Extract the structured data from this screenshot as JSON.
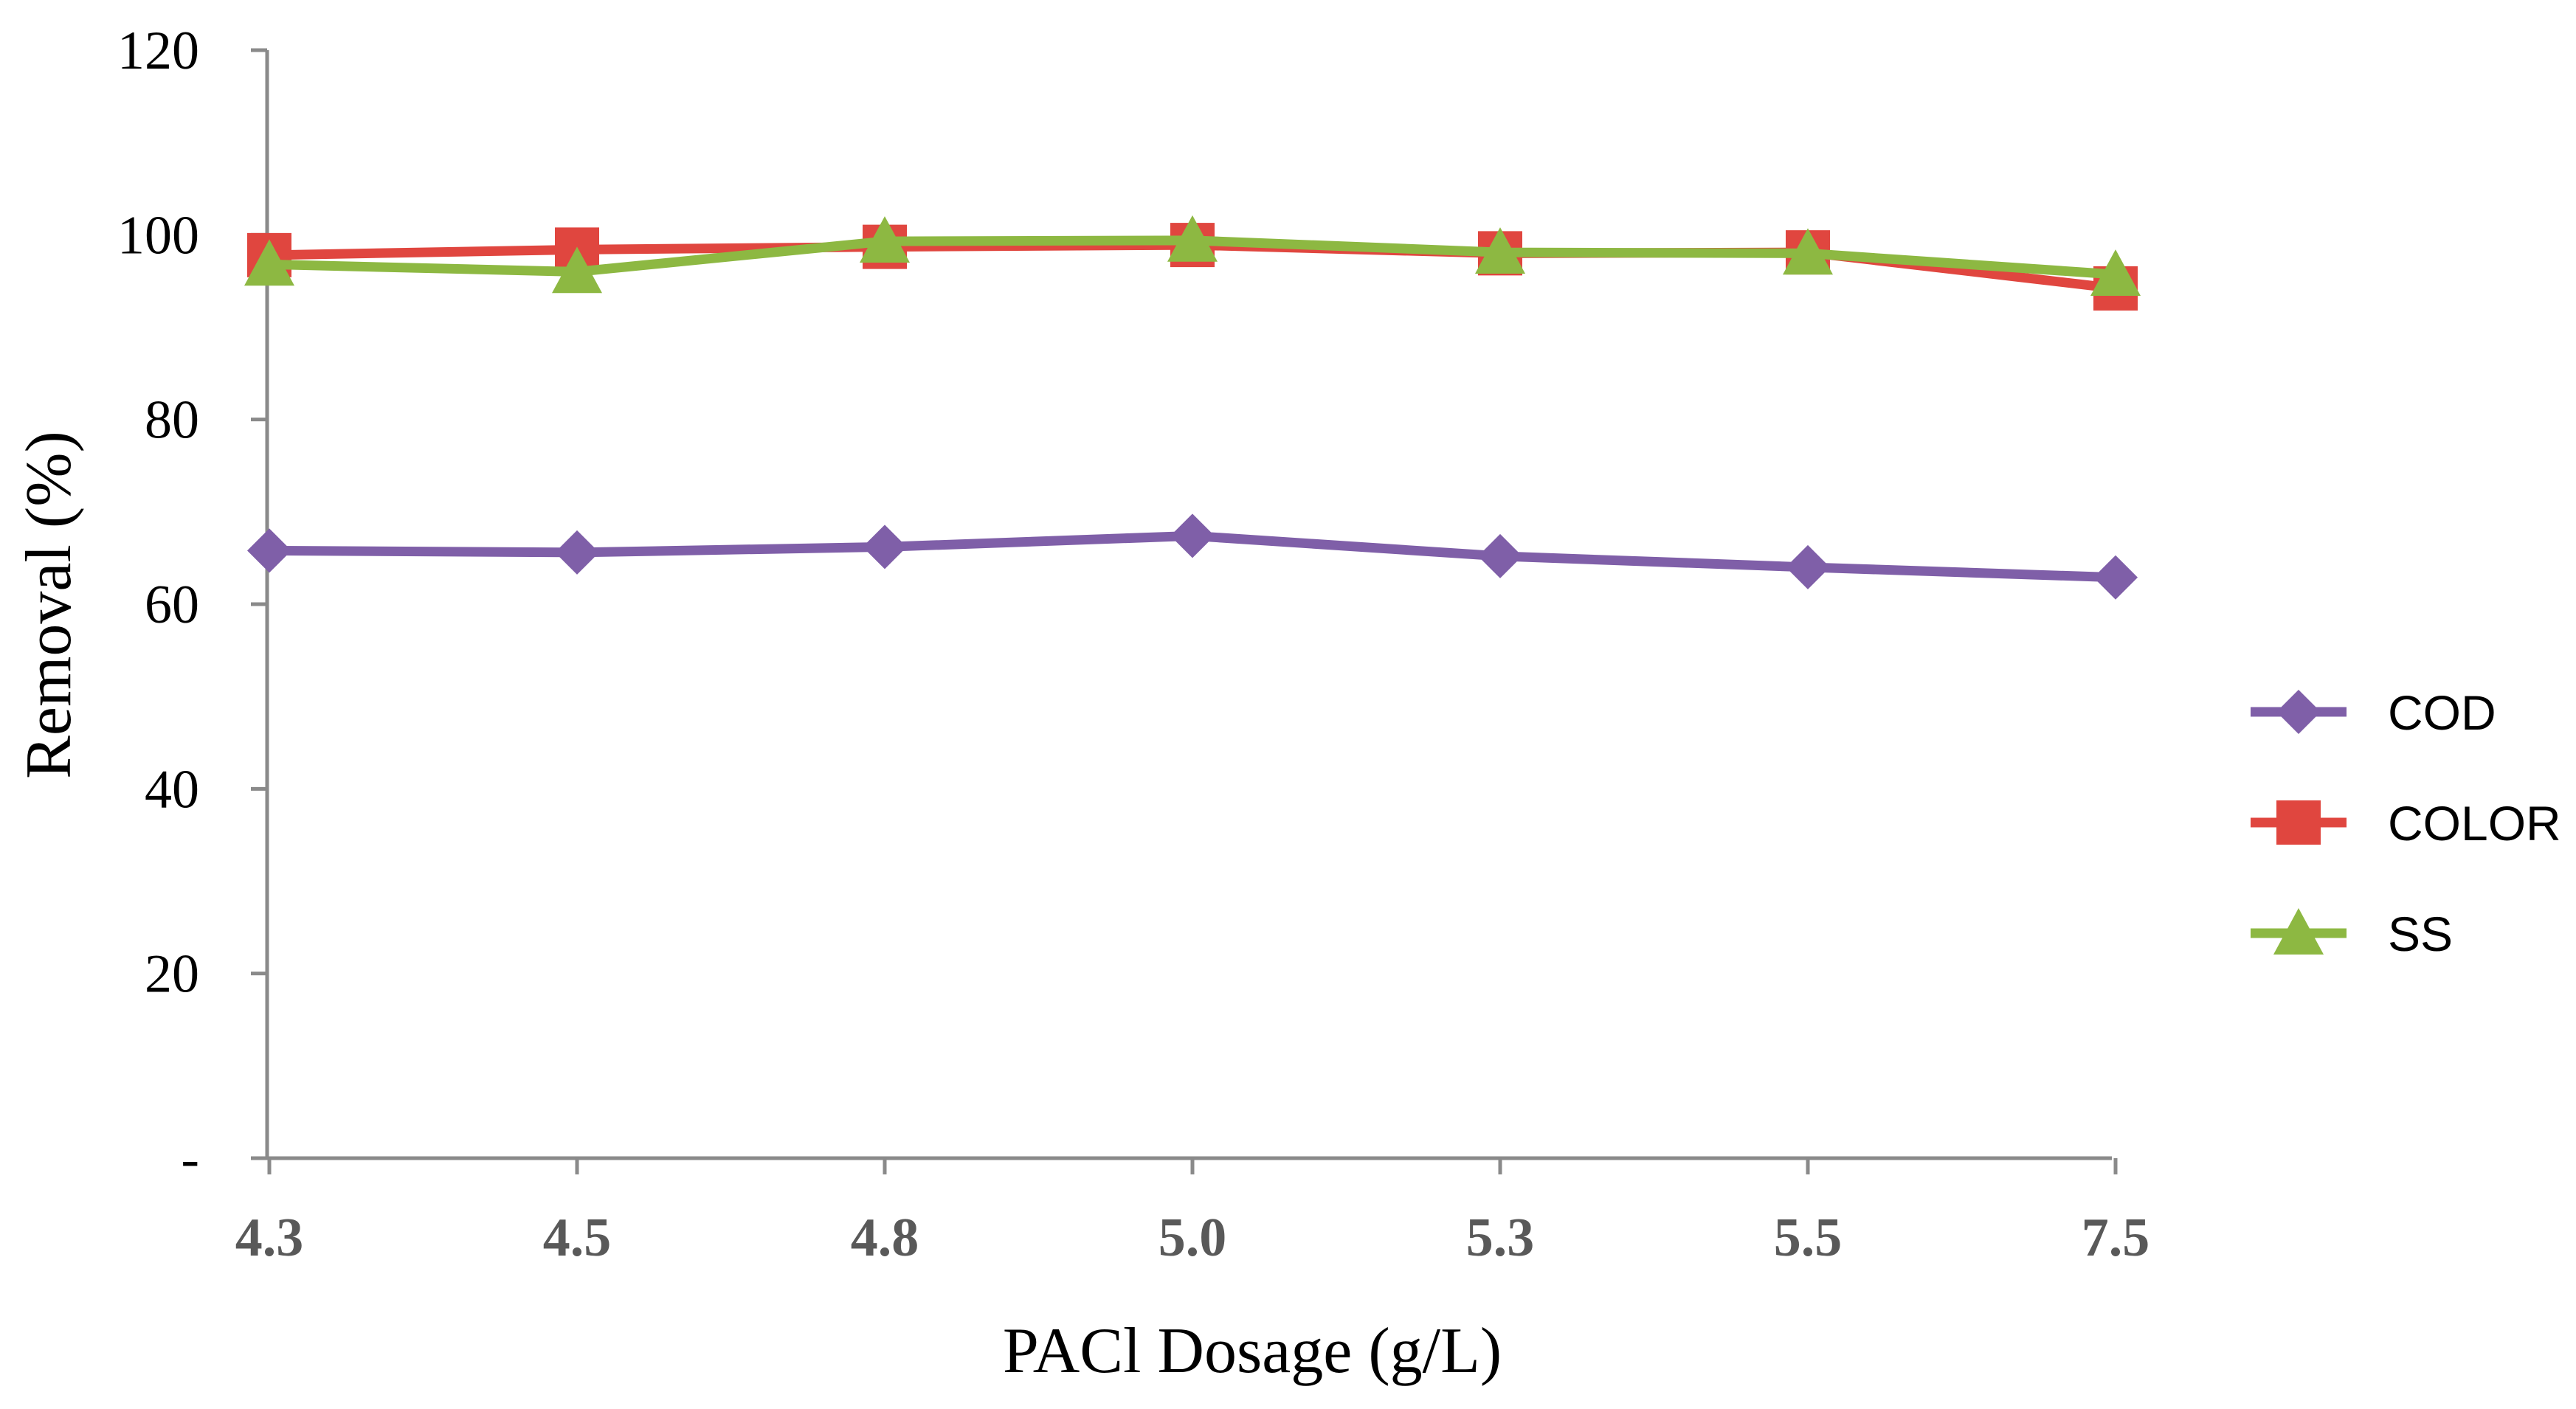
{
  "chart_data": {
    "type": "line",
    "title": "",
    "xlabel": "PACl Dosage (g/L)",
    "ylabel": "Removal (%)",
    "categories": [
      "4.3",
      "4.5",
      "4.8",
      "5.0",
      "5.3",
      "5.5",
      "7.5"
    ],
    "ylim": [
      0,
      120
    ],
    "yticks": [
      {
        "value": 0,
        "label": "-"
      },
      {
        "value": 20,
        "label": "20"
      },
      {
        "value": 40,
        "label": "40"
      },
      {
        "value": 60,
        "label": "60"
      },
      {
        "value": 80,
        "label": "80"
      },
      {
        "value": 100,
        "label": "100"
      },
      {
        "value": 120,
        "label": "120"
      }
    ],
    "grid": false,
    "legend_position": "right",
    "series": [
      {
        "name": "COD",
        "marker": "diamond",
        "color": "#7F5FA8",
        "values": [
          65.8,
          65.6,
          66.2,
          67.4,
          65.2,
          64.0,
          62.9
        ]
      },
      {
        "name": "COLOR",
        "marker": "square",
        "color": "#E0463F",
        "values": [
          97.8,
          98.4,
          98.7,
          98.9,
          98.0,
          98.1,
          94.2
        ]
      },
      {
        "name": "SS",
        "marker": "triangle",
        "color": "#8DB842",
        "values": [
          96.8,
          96.0,
          99.3,
          99.4,
          98.1,
          98.0,
          95.7
        ]
      }
    ]
  }
}
